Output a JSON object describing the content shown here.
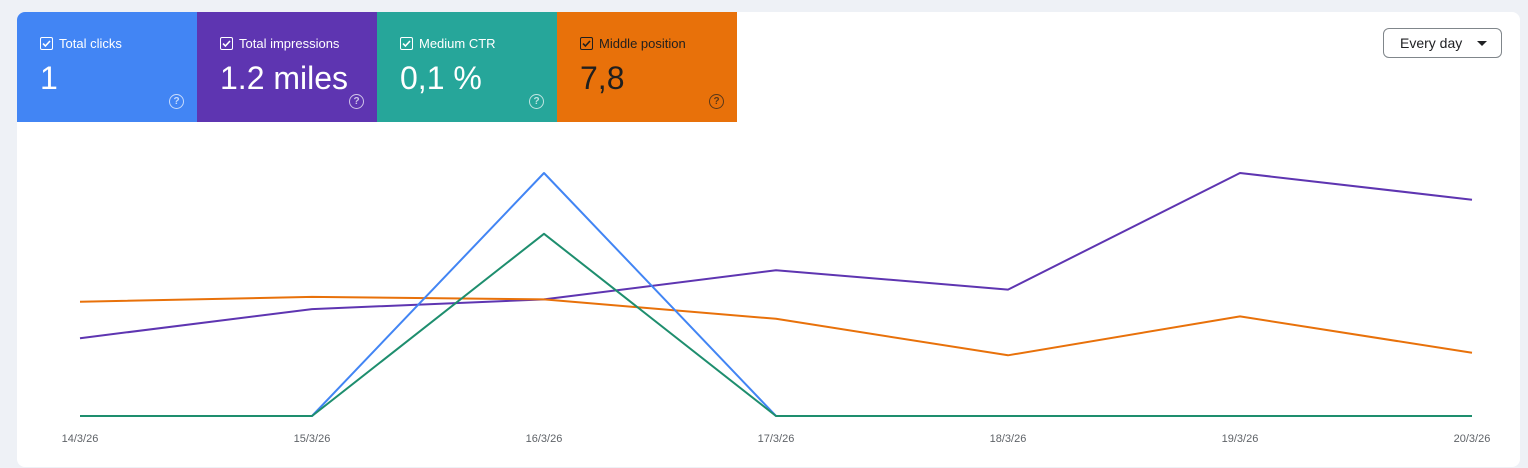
{
  "cards": [
    {
      "label": "Total clicks",
      "value": "1",
      "color": "#4285f4"
    },
    {
      "label": "Total impressions",
      "value": "1.2 miles",
      "color": "#5e35b1"
    },
    {
      "label": "Medium CTR",
      "value": "0,1 %",
      "color": "#26a69a"
    },
    {
      "label": "Middle position",
      "value": "7,8",
      "color": "#e8710a"
    }
  ],
  "dropdown": {
    "label": "Every day"
  },
  "chart_data": {
    "type": "line",
    "categories": [
      "14/3/26",
      "15/3/26",
      "16/3/26",
      "17/3/26",
      "18/3/26",
      "19/3/26",
      "20/3/26"
    ],
    "series": [
      {
        "name": "Total impressions",
        "color": "#5e35b1",
        "values": [
          0.32,
          0.44,
          0.48,
          0.6,
          0.52,
          1.0,
          0.89
        ]
      },
      {
        "name": "Middle position",
        "color": "#e8710a",
        "values": [
          0.47,
          0.49,
          0.48,
          0.4,
          0.25,
          0.41,
          0.26
        ]
      },
      {
        "name": "Total clicks",
        "color": "#4285f4",
        "values": [
          0,
          0,
          1,
          0,
          0,
          0,
          0
        ]
      },
      {
        "name": "Medium CTR",
        "color": "#1e8e6e",
        "values": [
          0,
          0,
          0.75,
          0,
          0,
          0,
          0
        ]
      }
    ]
  }
}
